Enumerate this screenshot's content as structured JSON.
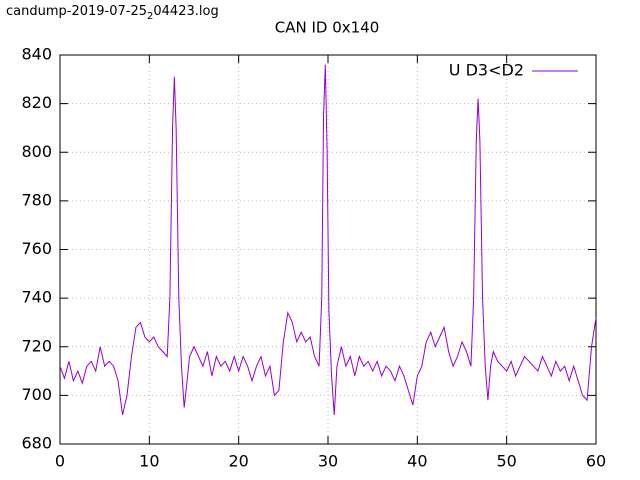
{
  "chart_data": {
    "type": "line",
    "title": "CAN ID 0x140",
    "annotation": [
      "candump-2019-07-25",
      "2",
      "04423.log"
    ],
    "x": [
      0,
      0.5,
      1,
      1.5,
      2,
      2.5,
      3,
      3.5,
      4,
      4.5,
      5,
      5.5,
      6,
      6.5,
      7,
      7.5,
      8,
      8.5,
      9,
      9.5,
      10,
      10.5,
      11,
      11.5,
      12,
      12.3,
      12.6,
      12.8,
      13,
      13.3,
      13.6,
      13.9,
      14.2,
      14.5,
      15,
      15.5,
      16,
      16.5,
      17,
      17.5,
      18,
      18.5,
      19,
      19.5,
      20,
      20.5,
      21,
      21.5,
      22,
      22.5,
      23,
      23.5,
      24,
      24.5,
      25,
      25.5,
      26,
      26.5,
      27,
      27.5,
      28,
      28.5,
      29,
      29.3,
      29.5,
      29.7,
      29.9,
      30.1,
      30.4,
      30.7,
      31,
      31.5,
      32,
      32.5,
      33,
      33.5,
      34,
      34.5,
      35,
      35.5,
      36,
      36.5,
      37,
      37.5,
      38,
      38.5,
      39,
      39.5,
      40,
      40.5,
      41,
      41.5,
      42,
      42.5,
      43,
      43.5,
      44,
      44.5,
      45,
      45.5,
      46,
      46.3,
      46.6,
      46.8,
      47,
      47.3,
      47.6,
      47.9,
      48.2,
      48.5,
      49,
      49.5,
      50,
      50.5,
      51,
      51.5,
      52,
      52.5,
      53,
      53.5,
      54,
      54.5,
      55,
      55.5,
      56,
      56.5,
      57,
      57.5,
      58,
      58.5,
      59,
      59.5,
      60
    ],
    "series": [
      {
        "name": "U D3<D2",
        "color": "#9400d3",
        "values": [
          712,
          707,
          714,
          706,
          710,
          705,
          712,
          714,
          710,
          720,
          712,
          714,
          712,
          706,
          692,
          700,
          716,
          728,
          730,
          724,
          722,
          724,
          720,
          718,
          716,
          740,
          810,
          831,
          810,
          740,
          712,
          695,
          705,
          716,
          720,
          716,
          712,
          718,
          708,
          716,
          712,
          714,
          710,
          716,
          710,
          716,
          712,
          706,
          712,
          716,
          708,
          712,
          700,
          702,
          722,
          734,
          730,
          722,
          726,
          722,
          724,
          716,
          712,
          740,
          815,
          836,
          800,
          735,
          708,
          692,
          712,
          720,
          712,
          716,
          708,
          716,
          712,
          714,
          710,
          714,
          708,
          712,
          710,
          706,
          712,
          708,
          702,
          696,
          708,
          712,
          722,
          726,
          720,
          724,
          728,
          718,
          712,
          716,
          722,
          718,
          712,
          740,
          805,
          822,
          805,
          740,
          712,
          698,
          712,
          718,
          714,
          712,
          710,
          714,
          708,
          712,
          716,
          714,
          712,
          710,
          716,
          712,
          708,
          714,
          710,
          712,
          706,
          712,
          706,
          700,
          698,
          720,
          732
        ]
      }
    ],
    "xlim": [
      0,
      60
    ],
    "xticks": [
      0,
      10,
      20,
      30,
      40,
      50,
      60
    ],
    "ylim": [
      680,
      840
    ],
    "yticks": [
      680,
      700,
      720,
      740,
      760,
      780,
      800,
      820,
      840
    ],
    "grid": true,
    "legend": "top-right"
  }
}
